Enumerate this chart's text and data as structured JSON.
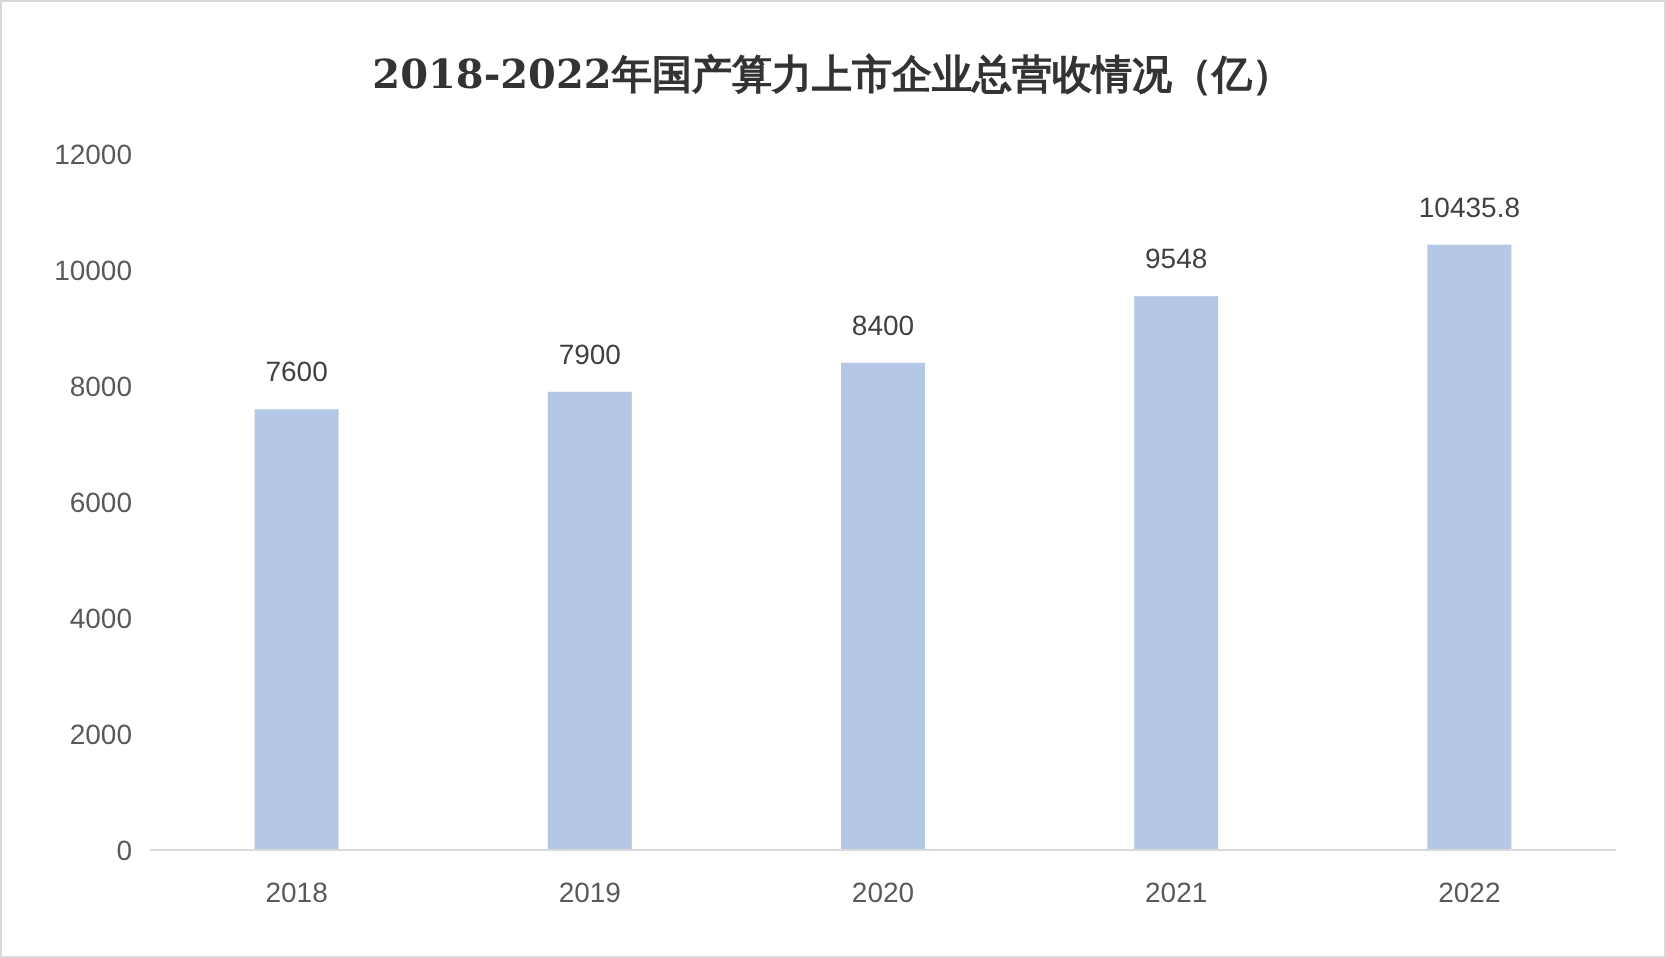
{
  "chart_data": {
    "type": "bar",
    "title": "2018-2022年国产算力上市企业总营收情况（亿）",
    "categories": [
      "2018",
      "2019",
      "2020",
      "2021",
      "2022"
    ],
    "values": [
      7600,
      7900,
      8400,
      9548,
      10435.8
    ],
    "color": "#b4c7e7",
    "ylim": [
      0,
      12000
    ],
    "yticks": [
      0,
      2000,
      4000,
      6000,
      8000,
      10000,
      12000
    ],
    "data_labels": true
  }
}
